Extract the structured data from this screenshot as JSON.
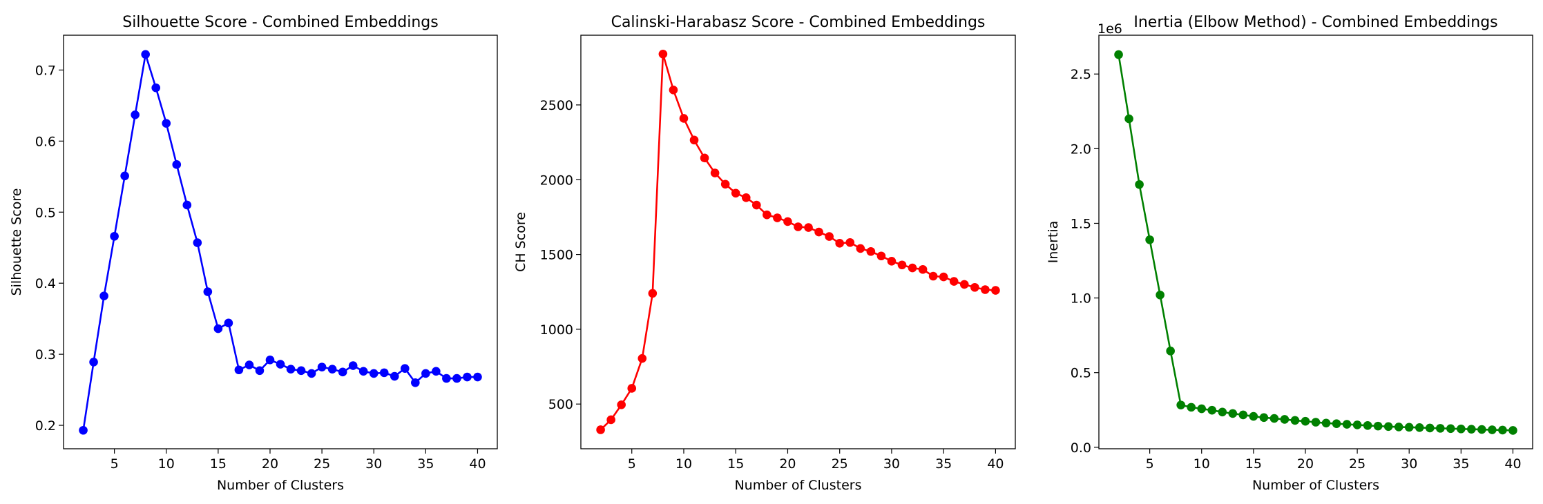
{
  "chart_data": [
    {
      "type": "line",
      "title": "Silhouette Score - Combined Embeddings",
      "xlabel": "Number of Clusters",
      "ylabel": "Silhouette Score",
      "offset_text": "",
      "color": "#0000ff",
      "xlim": [
        0.1,
        41.9
      ],
      "ylim": [
        0.167,
        0.749
      ],
      "xticks": [
        5,
        10,
        15,
        20,
        25,
        30,
        35,
        40
      ],
      "xtick_labels": [
        "5",
        "10",
        "15",
        "20",
        "25",
        "30",
        "35",
        "40"
      ],
      "yticks": [
        0.2,
        0.3,
        0.4,
        0.5,
        0.6,
        0.7
      ],
      "ytick_labels": [
        "0.2",
        "0.3",
        "0.4",
        "0.5",
        "0.6",
        "0.7"
      ],
      "grid": false,
      "legend": "none",
      "series": [
        {
          "x": [
            2,
            3,
            4,
            5,
            6,
            7,
            8,
            9,
            10,
            11,
            12,
            13,
            14,
            15,
            16,
            17,
            18,
            19,
            20,
            21,
            22,
            23,
            24,
            25,
            26,
            27,
            28,
            29,
            30,
            31,
            32,
            33,
            34,
            35,
            36,
            37,
            38,
            39,
            40
          ],
          "values": [
            0.193,
            0.289,
            0.382,
            0.466,
            0.551,
            0.637,
            0.722,
            0.675,
            0.625,
            0.567,
            0.51,
            0.457,
            0.388,
            0.336,
            0.344,
            0.278,
            0.285,
            0.277,
            0.292,
            0.286,
            0.279,
            0.277,
            0.273,
            0.282,
            0.279,
            0.275,
            0.284,
            0.276,
            0.273,
            0.274,
            0.269,
            0.28,
            0.26,
            0.273,
            0.276,
            0.266,
            0.266,
            0.268,
            0.268
          ]
        }
      ]
    },
    {
      "type": "line",
      "title": "Calinski-Harabasz Score - Combined Embeddings",
      "xlabel": "Number of Clusters",
      "ylabel": "CH Score",
      "offset_text": "",
      "color": "#ff0000",
      "xlim": [
        0.1,
        41.9
      ],
      "ylim": [
        201,
        2966
      ],
      "xticks": [
        5,
        10,
        15,
        20,
        25,
        30,
        35,
        40
      ],
      "xtick_labels": [
        "5",
        "10",
        "15",
        "20",
        "25",
        "30",
        "35",
        "40"
      ],
      "yticks": [
        500,
        1000,
        1500,
        2000,
        2500
      ],
      "ytick_labels": [
        "500",
        "1000",
        "1500",
        "2000",
        "2500"
      ],
      "grid": false,
      "legend": "none",
      "series": [
        {
          "x": [
            2,
            3,
            4,
            5,
            6,
            7,
            8,
            9,
            10,
            11,
            12,
            13,
            14,
            15,
            16,
            17,
            18,
            19,
            20,
            21,
            22,
            23,
            24,
            25,
            26,
            27,
            28,
            29,
            30,
            31,
            32,
            33,
            34,
            35,
            36,
            37,
            38,
            39,
            40
          ],
          "values": [
            328,
            395,
            495,
            605,
            805,
            1240,
            2840,
            2600,
            2410,
            2265,
            2145,
            2045,
            1970,
            1910,
            1880,
            1830,
            1765,
            1745,
            1720,
            1685,
            1680,
            1650,
            1620,
            1575,
            1580,
            1540,
            1520,
            1490,
            1455,
            1430,
            1410,
            1400,
            1355,
            1350,
            1320,
            1300,
            1280,
            1265,
            1260
          ]
        }
      ]
    },
    {
      "type": "line",
      "title": "Inertia (Elbow Method) - Combined Embeddings",
      "xlabel": "Number of Clusters",
      "ylabel": "Inertia",
      "offset_text": "1e6",
      "color": "#008000",
      "xlim": [
        0.1,
        41.9
      ],
      "ylim": [
        -0.01,
        2.76
      ],
      "xticks": [
        5,
        10,
        15,
        20,
        25,
        30,
        35,
        40
      ],
      "xtick_labels": [
        "5",
        "10",
        "15",
        "20",
        "25",
        "30",
        "35",
        "40"
      ],
      "yticks": [
        0.0,
        0.5,
        1.0,
        1.5,
        2.0,
        2.5
      ],
      "ytick_labels": [
        "0.0",
        "0.5",
        "1.0",
        "1.5",
        "2.0",
        "2.5"
      ],
      "grid": false,
      "legend": "none",
      "series": [
        {
          "x": [
            2,
            3,
            4,
            5,
            6,
            7,
            8,
            9,
            10,
            11,
            12,
            13,
            14,
            15,
            16,
            17,
            18,
            19,
            20,
            21,
            22,
            23,
            24,
            25,
            26,
            27,
            28,
            29,
            30,
            31,
            32,
            33,
            34,
            35,
            36,
            37,
            38,
            39,
            40
          ],
          "values": [
            2.63,
            2.2,
            1.76,
            1.39,
            1.02,
            0.645,
            0.283,
            0.268,
            0.258,
            0.248,
            0.236,
            0.226,
            0.217,
            0.207,
            0.199,
            0.193,
            0.187,
            0.18,
            0.174,
            0.168,
            0.162,
            0.158,
            0.154,
            0.15,
            0.146,
            0.142,
            0.139,
            0.136,
            0.134,
            0.132,
            0.129,
            0.127,
            0.125,
            0.123,
            0.121,
            0.119,
            0.117,
            0.115,
            0.113
          ]
        }
      ]
    }
  ]
}
